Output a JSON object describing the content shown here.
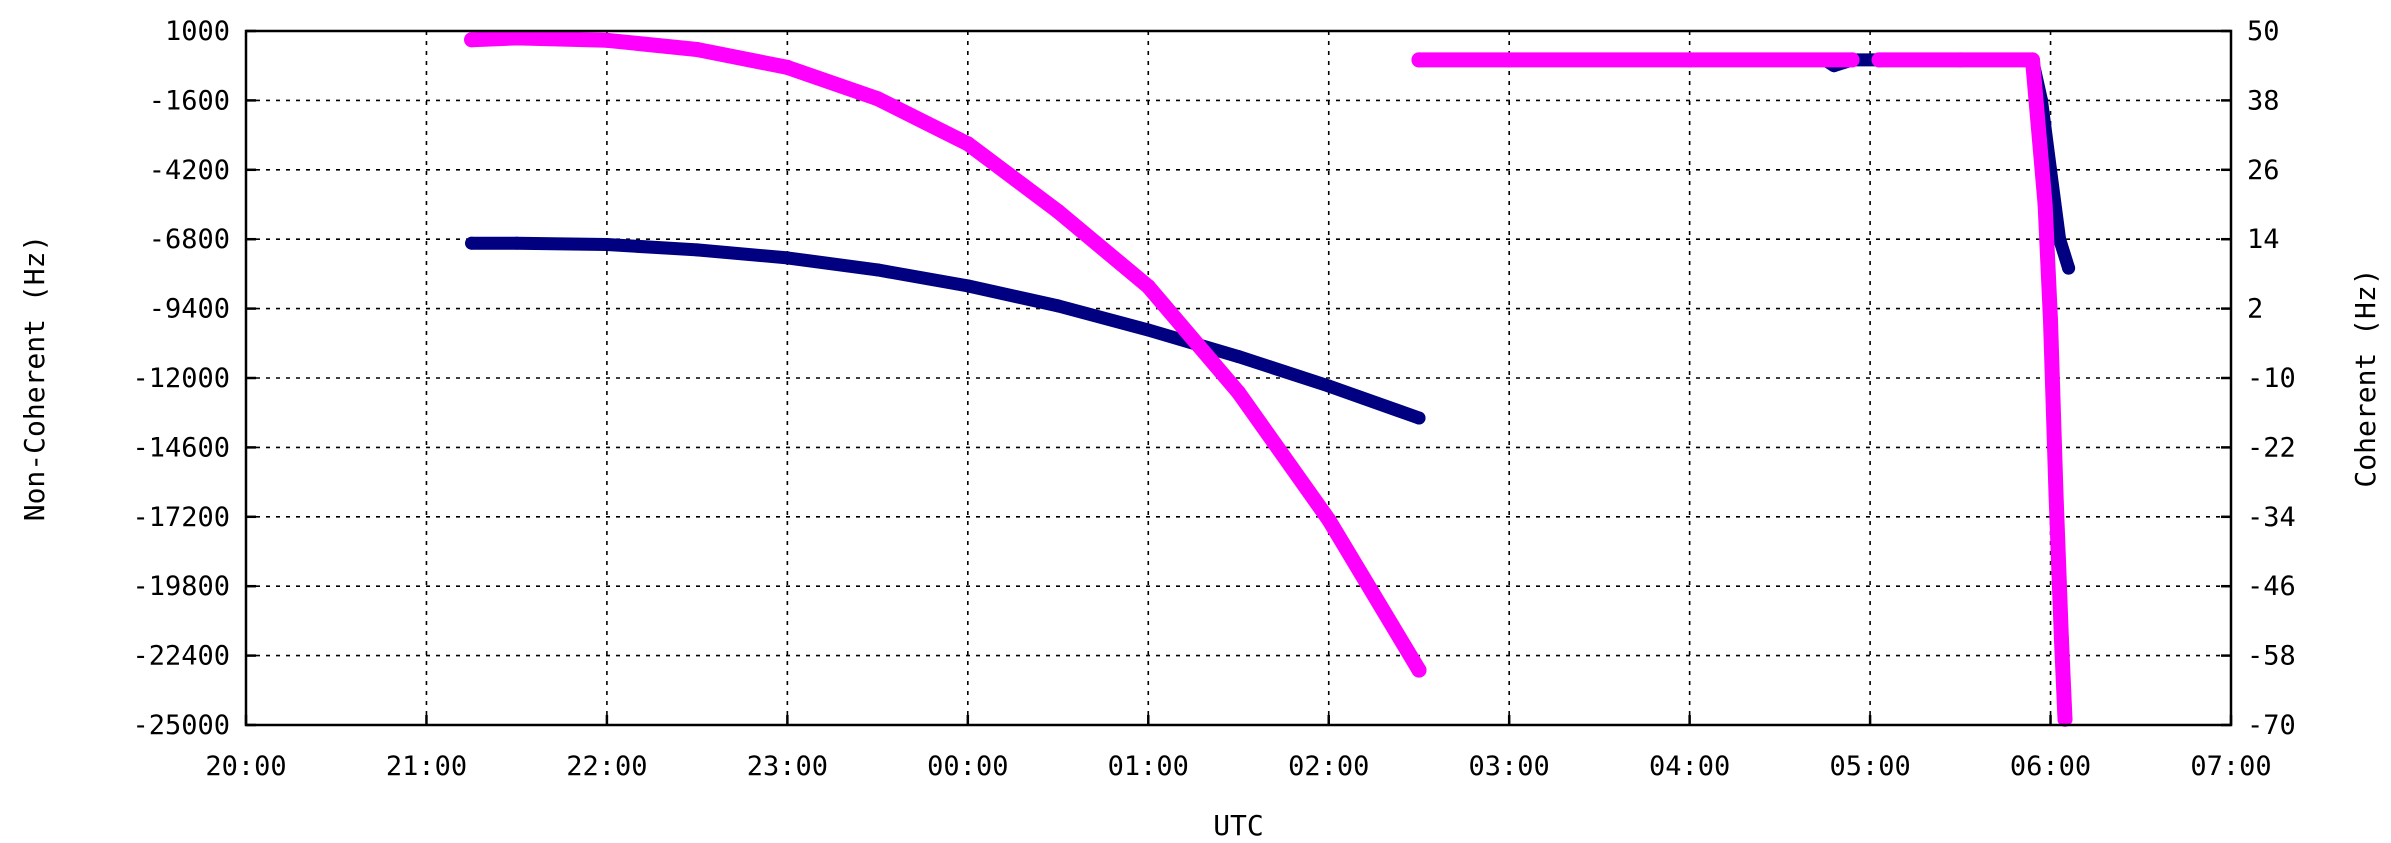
{
  "chart_data": {
    "type": "line",
    "title": "",
    "xlabel": "UTC",
    "ylabel_left": "Non-Coherent (Hz)",
    "ylabel_right": "Coherent (Hz)",
    "grid": true,
    "legend": "none",
    "x_ticks": [
      "20:00",
      "21:00",
      "22:00",
      "23:00",
      "00:00",
      "01:00",
      "02:00",
      "03:00",
      "04:00",
      "05:00",
      "06:00",
      "07:00"
    ],
    "x_range_hours": [
      20,
      31
    ],
    "y_left_ticks": [
      1000,
      -1600,
      -4200,
      -6800,
      -9400,
      -12000,
      -14600,
      -17200,
      -19800,
      -22400,
      -25000
    ],
    "y_left_range": [
      -25000,
      1000
    ],
    "y_right_ticks": [
      50,
      38,
      26,
      14,
      2,
      -10,
      -22,
      -34,
      -46,
      -58,
      -70
    ],
    "y_right_range": [
      -70,
      50
    ],
    "colors": {
      "non_coherent": "#000080",
      "coherent": "#ff00ff"
    },
    "series": [
      {
        "axis": "left",
        "color": "#000080",
        "segments": [
          {
            "x": [
              21.25,
              21.5,
              22.0,
              22.5,
              23.0,
              23.5,
              24.0,
              24.5,
              25.0,
              25.5,
              26.0,
              26.5
            ],
            "y": [
              -6950,
              -6950,
              -7000,
              -7200,
              -7500,
              -7950,
              -8550,
              -9300,
              -10200,
              -11200,
              -12300,
              -13500
            ]
          },
          {
            "x": [
              26.5,
              27.0,
              28.0,
              28.75,
              28.8,
              28.9,
              29.1,
              29.5,
              29.9,
              29.95,
              30.0,
              30.05,
              30.1
            ],
            "y": [
              45,
              45,
              45,
              45,
              44,
              45,
              45,
              45,
              45,
              38,
              26,
              14,
              9
            ],
            "note_axis": "right"
          }
        ]
      },
      {
        "axis": "right",
        "color": "#ff00ff",
        "segments": [
          {
            "x": [
              21.25,
              21.5,
              22.0,
              22.5,
              23.0,
              23.5,
              24.0,
              24.5,
              25.0,
              25.5,
              26.0,
              26.5
            ],
            "y": [
              48.5,
              48.8,
              48.4,
              46.8,
              43.7,
              38.3,
              30.5,
              18.8,
              5.8,
              -12.5,
              -34.5,
              -60.5
            ]
          },
          {
            "x": [
              26.5,
              27.0,
              28.0,
              28.9
            ],
            "y": [
              45,
              45,
              45,
              45
            ]
          },
          {
            "x": [
              29.05,
              29.5,
              29.9,
              29.97,
              30.0,
              30.03,
              30.06,
              30.08
            ],
            "y": [
              45,
              45,
              45,
              20,
              0,
              -30,
              -55,
              -69
            ]
          }
        ]
      }
    ]
  }
}
